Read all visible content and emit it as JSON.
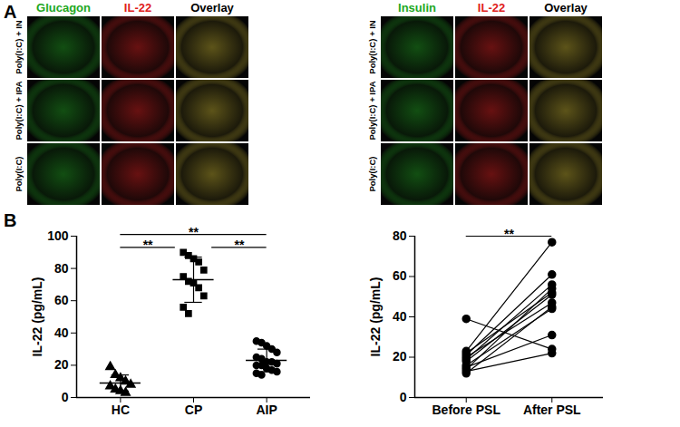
{
  "panel_a": {
    "label": "A",
    "groups": [
      {
        "columns": [
          {
            "text": "Glucagon",
            "color": "#22a822"
          },
          {
            "text": "IL-22",
            "color": "#e02020"
          },
          {
            "text": "Overlay",
            "color": "#000000"
          }
        ],
        "rows": [
          "Poly(I:C) + IN",
          "Poly(I:C) + IPA",
          "Poly(I:C)"
        ]
      },
      {
        "columns": [
          {
            "text": "Insulin",
            "color": "#22a822"
          },
          {
            "text": "IL-22",
            "color": "#e02020"
          },
          {
            "text": "Overlay",
            "color": "#000000"
          }
        ],
        "rows": [
          "Poly(I:C) + IN",
          "Poly(I:C) + IPA",
          "Poly(I:C)"
        ]
      }
    ]
  },
  "panel_b": {
    "label": "B"
  },
  "chart_data": [
    {
      "type": "scatter",
      "ylabel": "IL-22 (pg/mL)",
      "ylim": [
        0,
        100
      ],
      "yticks": [
        0,
        20,
        40,
        60,
        80,
        100
      ],
      "color": "#000000",
      "series": [
        {
          "name": "HC",
          "marker": "triangle",
          "values": [
            19,
            14,
            12,
            10,
            8,
            7,
            5,
            4,
            3
          ],
          "mean": 9,
          "sd": 5
        },
        {
          "name": "CP",
          "marker": "square",
          "values": [
            90,
            88,
            86,
            84,
            79,
            75,
            72,
            71,
            68,
            63,
            56,
            52
          ],
          "mean": 73,
          "sd": 14
        },
        {
          "name": "AIP",
          "marker": "circle",
          "values": [
            35,
            34,
            32,
            30,
            28,
            25,
            24,
            22,
            22,
            21,
            20,
            20,
            18,
            17,
            16,
            15,
            14
          ],
          "mean": 23,
          "sd": 7
        }
      ],
      "annotations": [
        {
          "from": "HC",
          "to": "CP",
          "text": "**"
        },
        {
          "from": "CP",
          "to": "AIP",
          "text": "**"
        },
        {
          "from": "HC",
          "to": "AIP",
          "text": "**"
        }
      ]
    },
    {
      "type": "line",
      "categories": [
        "Before PSL",
        "After PSL"
      ],
      "ylabel": "IL-22 (pg/mL)",
      "ylim": [
        0,
        80
      ],
      "yticks": [
        0,
        20,
        40,
        60,
        80
      ],
      "color": "#000000",
      "marker": "circle",
      "series": [
        {
          "values": [
            39,
            24
          ]
        },
        {
          "values": [
            23,
            77
          ]
        },
        {
          "values": [
            22,
            52
          ]
        },
        {
          "values": [
            21,
            61
          ]
        },
        {
          "values": [
            20,
            47
          ]
        },
        {
          "values": [
            19,
            56
          ]
        },
        {
          "values": [
            18,
            51
          ]
        },
        {
          "values": [
            16,
            44
          ]
        },
        {
          "values": [
            15,
            31
          ]
        },
        {
          "values": [
            14,
            54
          ]
        },
        {
          "values": [
            13,
            22
          ]
        },
        {
          "values": [
            12,
            45
          ]
        }
      ],
      "annotations": [
        {
          "from": "Before PSL",
          "to": "After PSL",
          "text": "**"
        }
      ]
    }
  ]
}
